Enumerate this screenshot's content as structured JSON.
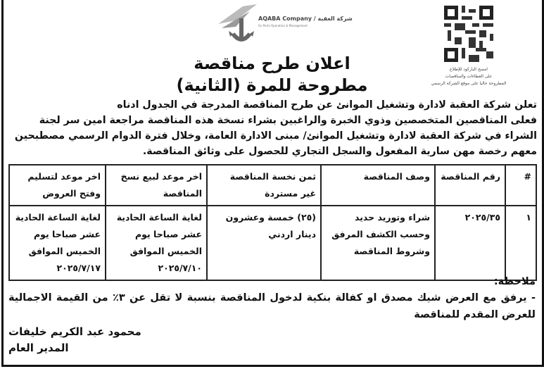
{
  "logo": {
    "text_en": "AQABA Company",
    "text_ar": "شركة العقبة",
    "subtitle": "for Ports Operation & Management"
  },
  "qr": {
    "caption": [
      "امسح الباركود للإطلاع",
      "على العطاءات والمناقصات",
      "المطروحة حاليا على موقع الشركة الرسمي"
    ]
  },
  "title": {
    "line1": "اعلان طرح مناقصة",
    "line2": "مطروحة للمرة (الثانية)"
  },
  "intro": [
    "تعلن شركة العقبة لادارة وتشغيل الموانئ عن طرح المناقصة المدرجة في الجدول ادناه",
    "فعلى المناقصين المتخصصين وذوي الخبرة والراغبين بشراء نسخة هذه المناقصة مراجعة امين سر لجنة",
    "الشراء في شركة العقبة لادارة وتشغيل الموانئ/ مبنى الادارة العامة، وخلال فترة الدوام الرسمي مصطبحين",
    "معهم رخصة مهن سارية المفعول والسجل التجاري للحصول على وثائق المناقصة."
  ],
  "table": {
    "headers": [
      "#",
      "رقم المناقصة",
      "وصف المناقصة",
      "ثمن نخسة المناقصة غير مستردة",
      "اخر موعد لبيع نسخ المناقصة",
      "اخر موعد لتسليم وفتح العروض"
    ],
    "rows": [
      [
        "١",
        "٢٠٢٥/٣٥",
        "شراء وتوريد حديد وحسب الكشف المرفق وشروط المناقصة",
        "(٢٥) خمسة وعشرون دينار اردني",
        "لغاية الساعة الحادية عشر صباحا يوم الخميس الموافق ٢٠٢٥/٧/١٠",
        "لغاية الساعة الحادية عشر صباحا يوم الخميس الموافق ٢٠٢٥/٧/١٧"
      ]
    ]
  },
  "note": {
    "label": "ملاحظة:",
    "line1": "- يرفق مع العرض شيك مصدق او كفالة بنكية لدخول المناقصة بنسبة لا تقل عن ٣٪ من القيمة الاجمالية",
    "line2": "للعرض المقدم للمناقصة"
  },
  "signature": {
    "name": "محمود عبد الكريم خليفات",
    "position": "المدير العام"
  }
}
